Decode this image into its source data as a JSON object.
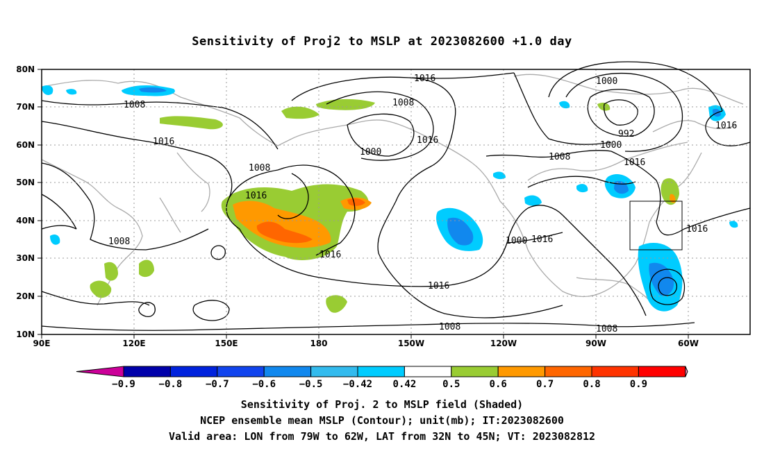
{
  "title": "Sensitivity of Proj2 to MSLP at 2023082600 +1.0 day",
  "map": {
    "lat_ticks": [
      "80N",
      "70N",
      "60N",
      "50N",
      "40N",
      "30N",
      "20N",
      "10N"
    ],
    "lon_ticks": [
      "90E",
      "120E",
      "150E",
      "180",
      "150W",
      "120W",
      "90W",
      "60W"
    ],
    "contour_labels": [
      {
        "text": "1016"
      },
      {
        "text": "1008"
      },
      {
        "text": "1008"
      },
      {
        "text": "1016"
      },
      {
        "text": "1008"
      },
      {
        "text": "1016"
      },
      {
        "text": "1000"
      },
      {
        "text": "1016"
      },
      {
        "text": "1016"
      },
      {
        "text": "1008"
      },
      {
        "text": "1016"
      },
      {
        "text": "1000"
      },
      {
        "text": "1016"
      },
      {
        "text": "1000"
      },
      {
        "text": "992"
      },
      {
        "text": "1000"
      },
      {
        "text": "1008"
      },
      {
        "text": "1016"
      },
      {
        "text": "1016"
      },
      {
        "text": "1008"
      },
      {
        "text": "1008"
      },
      {
        "text": "1016"
      }
    ],
    "valid_area": {
      "lon_min": -79,
      "lon_max": -62,
      "lat_min": 32,
      "lat_max": 45
    }
  },
  "colorbar": {
    "labels": [
      "-0.9",
      "-0.8",
      "-0.7",
      "-0.6",
      "-0.5",
      "-0.42",
      "0.42",
      "0.5",
      "0.6",
      "0.7",
      "0.8",
      "0.9"
    ],
    "colors": [
      "#cc0099",
      "#0000aa",
      "#0022dd",
      "#1144ee",
      "#1188ee",
      "#33bbee",
      "#00ccff",
      "#ffffff",
      "#99cc33",
      "#ff9900",
      "#ff6600",
      "#ff3300",
      "#ff0000",
      "#ff99cc"
    ]
  },
  "caption": {
    "line1": "Sensitivity of Proj. 2 to MSLP field (Shaded)",
    "line2": "NCEP ensemble mean MSLP (Contour); unit(mb); IT:2023082600",
    "line3": "Valid area: LON from 79W to 62W, LAT from 32N to 45N; VT: 2023082812"
  }
}
